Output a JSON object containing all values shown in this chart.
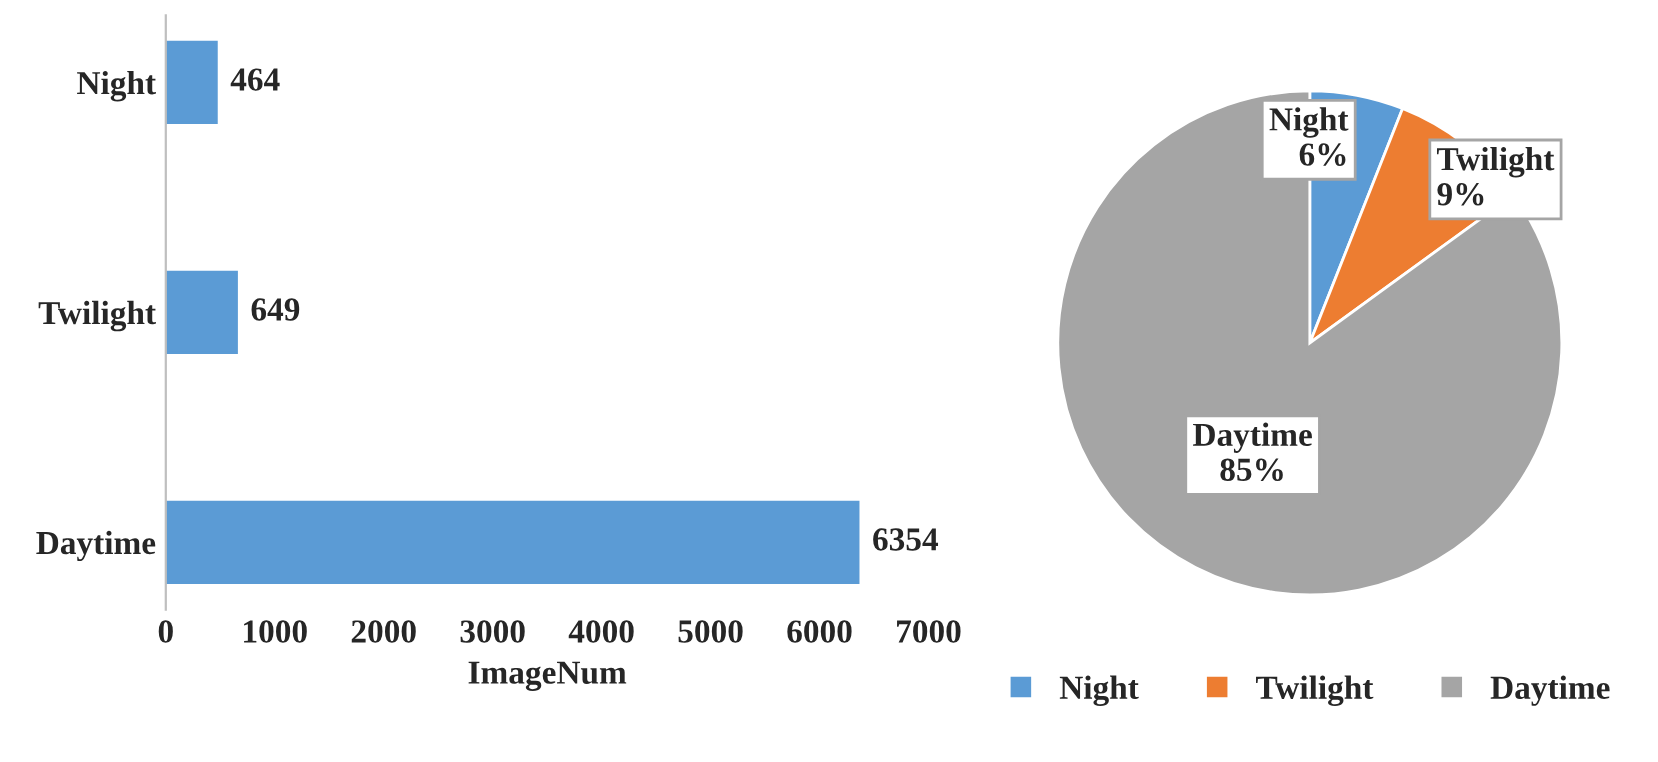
{
  "chart_data": [
    {
      "type": "bar",
      "orientation": "horizontal",
      "categories": [
        "Night",
        "Twilight",
        "Daytime"
      ],
      "values": [
        464,
        649,
        6354
      ],
      "color": "#5b9bd5",
      "xlim": [
        0,
        7000
      ],
      "xticks": [
        0,
        1000,
        2000,
        3000,
        4000,
        5000,
        6000,
        7000
      ],
      "xlabel": "ImageNum",
      "data_labels": true,
      "grid": false
    },
    {
      "type": "pie",
      "categories": [
        "Night",
        "Twilight",
        "Daytime"
      ],
      "values": [
        6,
        9,
        85
      ],
      "colors": [
        "#5b9bd5",
        "#ed7d31",
        "#a5a5a5"
      ],
      "value_labels": [
        "6%",
        "9%",
        "85%"
      ],
      "legend": "bottom"
    }
  ]
}
